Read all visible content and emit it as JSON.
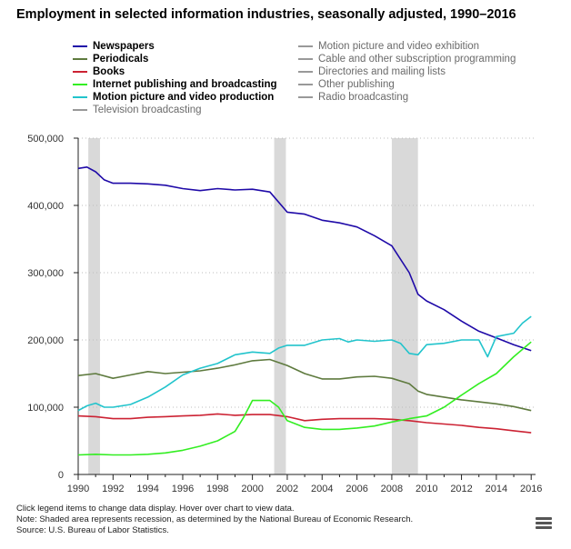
{
  "title": "Employment in selected information industries, seasonally adjusted, 1990–2016",
  "notes": {
    "line1": "Click legend items to change data display. Hover over chart to view data.",
    "line2": "Note: Shaded area represents recession, as determined by the National Bureau of Economic Research.",
    "line3": "Source: U.S. Bureau of Labor Statistics."
  },
  "menu_icon": "hamburger-menu-icon",
  "legend": {
    "left": [
      {
        "label": "Newspapers",
        "color": "#1f0aa8",
        "active": true
      },
      {
        "label": "Periodicals",
        "color": "#5e7a3e",
        "active": true
      },
      {
        "label": "Books",
        "color": "#cc2233",
        "active": true
      },
      {
        "label": "Internet publishing and broadcasting",
        "color": "#33ee22",
        "active": true
      },
      {
        "label": "Motion picture and video production",
        "color": "#22c4cc",
        "active": true
      },
      {
        "label": "Television broadcasting",
        "color": "#999999",
        "active": false
      }
    ],
    "right": [
      {
        "label": "Motion picture and video exhibition",
        "color": "#999999",
        "active": false
      },
      {
        "label": "Cable and other subscription programming",
        "color": "#999999",
        "active": false
      },
      {
        "label": "Directories and mailing lists",
        "color": "#999999",
        "active": false
      },
      {
        "label": "Other publishing",
        "color": "#999999",
        "active": false
      },
      {
        "label": "Radio broadcasting",
        "color": "#999999",
        "active": false
      }
    ]
  },
  "chart_data": {
    "type": "line",
    "title": "Employment in selected information industries, seasonally adjusted, 1990–2016",
    "xlabel": "",
    "ylabel": "",
    "xlim": [
      1990,
      2016.25
    ],
    "ylim": [
      0,
      500000
    ],
    "x_ticks": [
      "1990",
      "1992",
      "1994",
      "1996",
      "1998",
      "2000",
      "2002",
      "2004",
      "2006",
      "2008",
      "2010",
      "2012",
      "2014",
      "2016"
    ],
    "x_tick_values": [
      1990,
      1992,
      1994,
      1996,
      1998,
      2000,
      2002,
      2004,
      2006,
      2008,
      2010,
      2012,
      2014,
      2016
    ],
    "y_ticks": [
      "0",
      "100,000",
      "200,000",
      "300,000",
      "400,000",
      "500,000"
    ],
    "y_tick_values": [
      0,
      100000,
      200000,
      300000,
      400000,
      500000
    ],
    "grid": "horizontal dotted",
    "legend_position": "top",
    "recessions": [
      [
        1990.58,
        1991.25
      ],
      [
        2001.25,
        2001.92
      ],
      [
        2008.0,
        2009.5
      ]
    ],
    "series": [
      {
        "name": "Newspapers",
        "color": "#1f0aa8",
        "points": [
          [
            1990,
            455000
          ],
          [
            1990.5,
            457000
          ],
          [
            1991,
            450000
          ],
          [
            1991.5,
            438000
          ],
          [
            1992,
            433000
          ],
          [
            1993,
            433000
          ],
          [
            1994,
            432000
          ],
          [
            1995,
            430000
          ],
          [
            1996,
            425000
          ],
          [
            1997,
            422000
          ],
          [
            1998,
            425000
          ],
          [
            1999,
            423000
          ],
          [
            2000,
            424000
          ],
          [
            2001,
            420000
          ],
          [
            2002,
            390000
          ],
          [
            2003,
            387000
          ],
          [
            2004,
            378000
          ],
          [
            2005,
            374000
          ],
          [
            2006,
            368000
          ],
          [
            2007,
            355000
          ],
          [
            2008,
            340000
          ],
          [
            2009,
            300000
          ],
          [
            2009.5,
            268000
          ],
          [
            2010,
            258000
          ],
          [
            2011,
            245000
          ],
          [
            2012,
            228000
          ],
          [
            2013,
            213000
          ],
          [
            2014,
            203000
          ],
          [
            2015,
            193000
          ],
          [
            2016,
            184000
          ]
        ]
      },
      {
        "name": "Periodicals",
        "color": "#5e7a3e",
        "points": [
          [
            1990,
            147000
          ],
          [
            1991,
            150000
          ],
          [
            1992,
            143000
          ],
          [
            1993,
            148000
          ],
          [
            1994,
            153000
          ],
          [
            1995,
            150000
          ],
          [
            1996,
            152000
          ],
          [
            1997,
            154000
          ],
          [
            1998,
            158000
          ],
          [
            1999,
            163000
          ],
          [
            2000,
            169000
          ],
          [
            2001,
            171000
          ],
          [
            2002,
            162000
          ],
          [
            2003,
            150000
          ],
          [
            2004,
            142000
          ],
          [
            2005,
            142000
          ],
          [
            2006,
            145000
          ],
          [
            2007,
            146000
          ],
          [
            2008,
            143000
          ],
          [
            2009,
            135000
          ],
          [
            2009.5,
            124000
          ],
          [
            2010,
            119000
          ],
          [
            2011,
            115000
          ],
          [
            2012,
            111000
          ],
          [
            2013,
            108000
          ],
          [
            2014,
            105000
          ],
          [
            2015,
            101000
          ],
          [
            2016,
            95000
          ]
        ]
      },
      {
        "name": "Books",
        "color": "#cc2233",
        "points": [
          [
            1990,
            87000
          ],
          [
            1991,
            86000
          ],
          [
            1992,
            83000
          ],
          [
            1993,
            83000
          ],
          [
            1994,
            85000
          ],
          [
            1995,
            86000
          ],
          [
            1996,
            87000
          ],
          [
            1997,
            88000
          ],
          [
            1998,
            90000
          ],
          [
            1999,
            88000
          ],
          [
            2000,
            89000
          ],
          [
            2001,
            89000
          ],
          [
            2002,
            86000
          ],
          [
            2003,
            80000
          ],
          [
            2004,
            82000
          ],
          [
            2005,
            83000
          ],
          [
            2006,
            83000
          ],
          [
            2007,
            83000
          ],
          [
            2008,
            82000
          ],
          [
            2009,
            80000
          ],
          [
            2010,
            77000
          ],
          [
            2011,
            75000
          ],
          [
            2012,
            73000
          ],
          [
            2013,
            70000
          ],
          [
            2014,
            68000
          ],
          [
            2015,
            65000
          ],
          [
            2016,
            62000
          ]
        ]
      },
      {
        "name": "Internet publishing and broadcasting",
        "color": "#33ee22",
        "points": [
          [
            1990,
            29000
          ],
          [
            1991,
            30000
          ],
          [
            1992,
            29000
          ],
          [
            1993,
            29000
          ],
          [
            1994,
            30000
          ],
          [
            1995,
            32000
          ],
          [
            1996,
            36000
          ],
          [
            1997,
            42000
          ],
          [
            1998,
            50000
          ],
          [
            1999,
            64000
          ],
          [
            1999.5,
            85000
          ],
          [
            2000,
            110000
          ],
          [
            2001,
            110000
          ],
          [
            2001.5,
            100000
          ],
          [
            2002,
            80000
          ],
          [
            2003,
            70000
          ],
          [
            2004,
            67000
          ],
          [
            2005,
            67000
          ],
          [
            2006,
            69000
          ],
          [
            2007,
            72000
          ],
          [
            2008,
            78000
          ],
          [
            2009,
            83000
          ],
          [
            2010,
            87000
          ],
          [
            2011,
            100000
          ],
          [
            2012,
            118000
          ],
          [
            2013,
            135000
          ],
          [
            2014,
            150000
          ],
          [
            2015,
            175000
          ],
          [
            2016,
            197000
          ]
        ]
      },
      {
        "name": "Motion picture and video production",
        "color": "#22c4cc",
        "points": [
          [
            1990,
            95000
          ],
          [
            1990.5,
            102000
          ],
          [
            1991,
            106000
          ],
          [
            1991.5,
            100000
          ],
          [
            1992,
            100000
          ],
          [
            1993,
            104000
          ],
          [
            1994,
            115000
          ],
          [
            1995,
            130000
          ],
          [
            1996,
            148000
          ],
          [
            1997,
            158000
          ],
          [
            1998,
            165000
          ],
          [
            1999,
            178000
          ],
          [
            2000,
            182000
          ],
          [
            2001,
            180000
          ],
          [
            2001.5,
            188000
          ],
          [
            2002,
            192000
          ],
          [
            2003,
            192000
          ],
          [
            2004,
            200000
          ],
          [
            2005,
            202000
          ],
          [
            2005.5,
            197000
          ],
          [
            2006,
            200000
          ],
          [
            2007,
            198000
          ],
          [
            2008,
            200000
          ],
          [
            2008.5,
            195000
          ],
          [
            2009,
            180000
          ],
          [
            2009.5,
            178000
          ],
          [
            2010,
            193000
          ],
          [
            2011,
            195000
          ],
          [
            2012,
            200000
          ],
          [
            2013,
            200000
          ],
          [
            2013.5,
            175000
          ],
          [
            2014,
            205000
          ],
          [
            2015,
            210000
          ],
          [
            2015.5,
            225000
          ],
          [
            2016,
            235000
          ]
        ]
      }
    ]
  }
}
